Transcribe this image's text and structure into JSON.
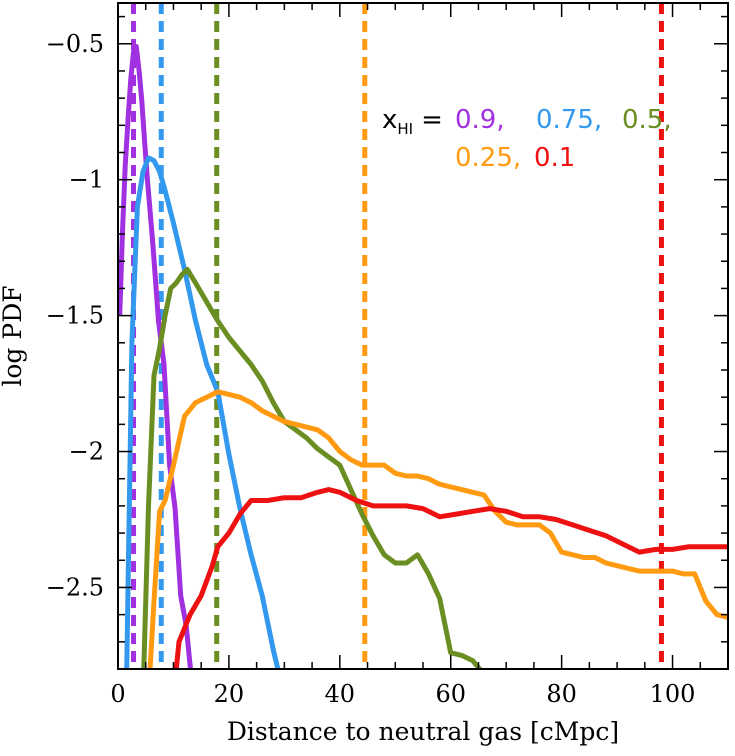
{
  "chart_data": {
    "type": "line",
    "title": "",
    "xlabel": "Distance to neutral gas [cMpc]",
    "ylabel": "log PDF",
    "xlim": [
      0,
      110
    ],
    "ylim": [
      -2.8,
      -0.35
    ],
    "x_ticks": [
      0,
      20,
      40,
      60,
      80,
      100
    ],
    "x_tick_labels": [
      "0",
      "20",
      "40",
      "60",
      "80",
      "100"
    ],
    "y_ticks": [
      -0.5,
      -1,
      -1.5,
      -2,
      -2.5
    ],
    "y_tick_labels": [
      "−0.5",
      "−1",
      "−1.5",
      "−2",
      "−2.5"
    ],
    "legend": {
      "prefix": "x",
      "subscript": "HI",
      "equals": "=",
      "entries": [
        {
          "label": "0.9,",
          "color": "#a030e0"
        },
        {
          "label": "0.75,",
          "color": "#3399ee"
        },
        {
          "label": "0.5,",
          "color": "#6b8e23"
        },
        {
          "label": "0.25,",
          "color": "#ff9a11"
        },
        {
          "label": "0.1",
          "color": "#ee1111"
        }
      ]
    },
    "series": [
      {
        "name": "x_HI = 0.9",
        "color": "#a030e0",
        "median": 2.8,
        "x": [
          0.3,
          0.8,
          1.3,
          1.8,
          2.3,
          2.8,
          3.3,
          3.8,
          4.3,
          4.8,
          5.3,
          5.8,
          6.3,
          7.3,
          8.3,
          9.3,
          10.3,
          11.3,
          12.3,
          13.3
        ],
        "y": [
          -1.5,
          -1.2,
          -0.95,
          -0.78,
          -0.63,
          -0.53,
          -0.51,
          -0.6,
          -0.71,
          -0.86,
          -1.0,
          -1.12,
          -1.24,
          -1.52,
          -1.68,
          -2.05,
          -2.21,
          -2.53,
          -2.64,
          -2.85
        ]
      },
      {
        "name": "x_HI = 0.75",
        "color": "#3399ee",
        "median": 7.8,
        "x": [
          1.5,
          2.5,
          3.5,
          4.5,
          5.5,
          6.5,
          7.5,
          8.5,
          10,
          12,
          14,
          16,
          18,
          20,
          22,
          24,
          26,
          28,
          30
        ],
        "y": [
          -2.9,
          -1.6,
          -1.1,
          -0.97,
          -0.92,
          -0.93,
          -0.97,
          -1.04,
          -1.16,
          -1.33,
          -1.52,
          -1.68,
          -1.78,
          -2.01,
          -2.21,
          -2.38,
          -2.53,
          -2.73,
          -2.9
        ]
      },
      {
        "name": "x_HI = 0.5",
        "color": "#6b8e23",
        "median": 17.8,
        "x": [
          4.5,
          5.5,
          6.5,
          7.5,
          8.5,
          9.5,
          10.5,
          11.5,
          12.5,
          14,
          16,
          18,
          20,
          22,
          24,
          26,
          28,
          30,
          32,
          34,
          36,
          38,
          40,
          42,
          44,
          46,
          48,
          50,
          52,
          54,
          56,
          58,
          60,
          62,
          64,
          66,
          68
        ],
        "y": [
          -2.9,
          -2.2,
          -1.72,
          -1.62,
          -1.5,
          -1.4,
          -1.38,
          -1.35,
          -1.33,
          -1.38,
          -1.45,
          -1.52,
          -1.58,
          -1.63,
          -1.68,
          -1.74,
          -1.82,
          -1.89,
          -1.92,
          -1.95,
          -1.99,
          -2.02,
          -2.05,
          -2.14,
          -2.23,
          -2.31,
          -2.38,
          -2.41,
          -2.41,
          -2.38,
          -2.45,
          -2.54,
          -2.74,
          -2.75,
          -2.77,
          -2.82,
          -2.9
        ]
      },
      {
        "name": "x_HI = 0.25",
        "color": "#ff9a11",
        "median": 44.5,
        "x": [
          5.5,
          6.5,
          7.5,
          8.5,
          10,
          12,
          14,
          16,
          18,
          20,
          22,
          24,
          26,
          28,
          30,
          32,
          34,
          36,
          38,
          40,
          42,
          44,
          46,
          48,
          50,
          52,
          54,
          56,
          58,
          60,
          62,
          64,
          66,
          68,
          70,
          72,
          74,
          76,
          78,
          80,
          82,
          84,
          86,
          88,
          90,
          92,
          94,
          96,
          98,
          100,
          102,
          104,
          106,
          108,
          110
        ],
        "y": [
          -2.9,
          -2.55,
          -2.22,
          -2.18,
          -2.05,
          -1.87,
          -1.82,
          -1.8,
          -1.78,
          -1.79,
          -1.8,
          -1.82,
          -1.85,
          -1.87,
          -1.89,
          -1.9,
          -1.91,
          -1.92,
          -1.95,
          -2.0,
          -2.03,
          -2.05,
          -2.05,
          -2.05,
          -2.08,
          -2.09,
          -2.09,
          -2.1,
          -2.12,
          -2.13,
          -2.14,
          -2.15,
          -2.16,
          -2.22,
          -2.26,
          -2.27,
          -2.27,
          -2.27,
          -2.3,
          -2.37,
          -2.38,
          -2.39,
          -2.39,
          -2.41,
          -2.42,
          -2.43,
          -2.44,
          -2.44,
          -2.44,
          -2.44,
          -2.45,
          -2.45,
          -2.55,
          -2.6,
          -2.61
        ]
      },
      {
        "name": "x_HI = 0.1",
        "color": "#ee1111",
        "median": 98,
        "x": [
          10,
          11,
          13,
          15,
          17,
          18,
          20,
          22,
          24,
          27,
          30,
          33,
          36,
          38,
          40,
          43,
          46,
          49,
          52,
          55,
          58,
          61,
          64,
          67,
          70,
          73,
          76,
          79,
          82,
          85,
          88,
          91,
          94,
          97,
          100,
          103,
          106,
          110
        ],
        "y": [
          -2.9,
          -2.7,
          -2.6,
          -2.53,
          -2.42,
          -2.35,
          -2.3,
          -2.23,
          -2.18,
          -2.18,
          -2.17,
          -2.17,
          -2.15,
          -2.14,
          -2.15,
          -2.18,
          -2.2,
          -2.2,
          -2.2,
          -2.21,
          -2.24,
          -2.23,
          -2.22,
          -2.21,
          -2.22,
          -2.24,
          -2.24,
          -2.25,
          -2.27,
          -2.29,
          -2.31,
          -2.34,
          -2.37,
          -2.36,
          -2.36,
          -2.35,
          -2.35,
          -2.35
        ]
      }
    ]
  }
}
